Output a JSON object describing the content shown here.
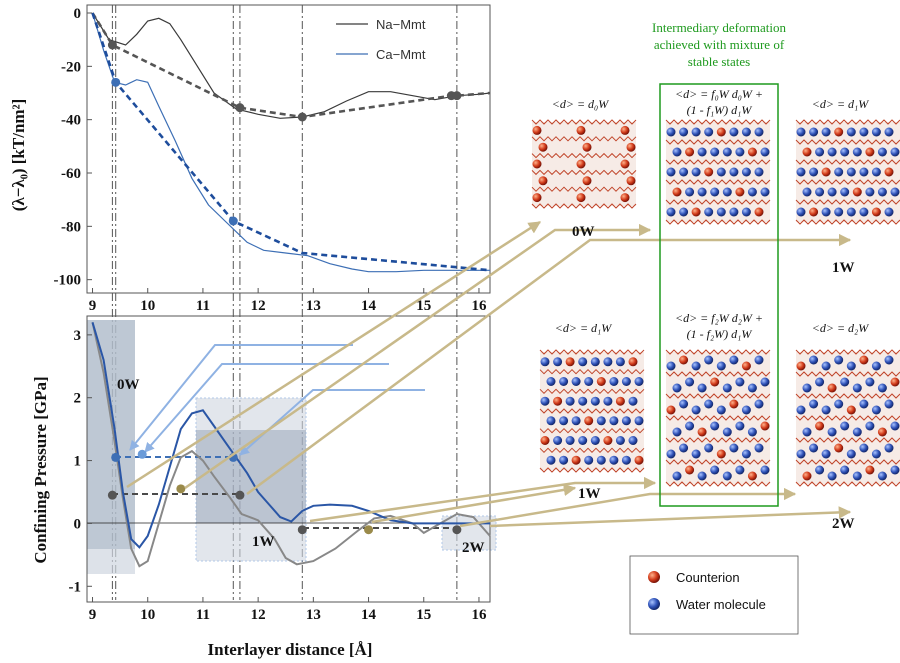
{
  "chart_data": [
    {
      "type": "line",
      "ylabel": "(λ−λ₀) [kT/nm²]",
      "xlim": [
        8.9,
        16.2
      ],
      "ylim": [
        -105,
        3
      ],
      "yticks": [
        0,
        -20,
        -40,
        -60,
        -80,
        -100
      ],
      "xticks": [
        9,
        10,
        11,
        12,
        13,
        14,
        15,
        16
      ],
      "legend_position": "top-right",
      "series": [
        {
          "name": "Na−Mmt",
          "color": "#3a3a3a",
          "x": [
            9.0,
            9.3,
            9.6,
            9.8,
            10.0,
            10.2,
            10.4,
            10.6,
            10.9,
            11.2,
            11.6,
            12.0,
            12.4,
            12.8,
            13.2,
            13.6,
            14.0,
            14.4,
            14.8,
            15.2,
            15.6,
            16.0,
            16.2
          ],
          "y": [
            0,
            -10,
            -12,
            -8,
            -3,
            -2,
            -4,
            -10,
            -20,
            -30,
            -36,
            -38,
            -39.5,
            -39,
            -37,
            -33,
            -29.5,
            -29.5,
            -31,
            -32.5,
            -31,
            -30.5,
            -30
          ]
        },
        {
          "name": "Ca−Mmt",
          "color": "#3d6fb5",
          "x": [
            9.0,
            9.2,
            9.4,
            9.6,
            9.8,
            10.0,
            10.2,
            10.5,
            10.8,
            11.1,
            11.4,
            11.6,
            11.8,
            12.1,
            12.5,
            12.9,
            13.3,
            13.7,
            14.0,
            14.5,
            15.0,
            15.5,
            16.0,
            16.2
          ],
          "y": [
            0,
            -14,
            -26,
            -27,
            -25,
            -26,
            -35,
            -48,
            -62,
            -72,
            -78,
            -82,
            -86,
            -89,
            -90,
            -91,
            -94,
            -96,
            -97,
            -97,
            -96.5,
            -96.5,
            -96.5,
            -96.5
          ]
        },
        {
          "name": "",
          "color": "#555555",
          "dashed": true,
          "x": [
            9.0,
            9.36,
            11.67,
            12.8,
            15.5,
            15.6,
            16.2
          ],
          "y": [
            0,
            -12,
            -35.5,
            -39,
            -31,
            -31,
            -30
          ]
        },
        {
          "name": "",
          "color": "#1e4d9c",
          "dashed": true,
          "x": [
            9.0,
            9.42,
            11.55,
            12.8,
            16.2
          ],
          "y": [
            0,
            -26,
            -78,
            -90,
            -96.5
          ]
        }
      ],
      "points": [
        {
          "x": 9.36,
          "y": -12,
          "color": "#555555"
        },
        {
          "x": 11.67,
          "y": -35.5,
          "color": "#555555"
        },
        {
          "x": 12.8,
          "y": -39,
          "color": "#555555"
        },
        {
          "x": 15.5,
          "y": -31,
          "color": "#555555"
        },
        {
          "x": 15.6,
          "y": -31,
          "color": "#555555"
        },
        {
          "x": 9.42,
          "y": -26,
          "color": "#3d6fb5"
        },
        {
          "x": 11.55,
          "y": -78,
          "color": "#3d6fb5"
        }
      ],
      "vlines": [
        9.36,
        9.42,
        11.55,
        11.67,
        12.8,
        15.6
      ]
    },
    {
      "type": "line",
      "xlabel": "Interlayer distance [Å]",
      "ylabel": "Confining Pressure [GPa]",
      "xlim": [
        8.9,
        16.2
      ],
      "ylim": [
        -1.25,
        3.3
      ],
      "yticks": [
        3,
        2,
        1,
        0,
        -1
      ],
      "xticks": [
        9,
        10,
        11,
        12,
        13,
        14,
        15,
        16
      ],
      "series": [
        {
          "name": "Na−Mmt",
          "color": "#888888",
          "x": [
            9.0,
            9.2,
            9.4,
            9.55,
            9.7,
            9.85,
            10.0,
            10.2,
            10.4,
            10.6,
            10.8,
            11.0,
            11.2,
            11.5,
            11.7,
            12.0,
            12.3,
            12.5,
            12.7,
            13.0,
            13.4,
            13.8,
            14.1,
            14.4,
            14.8,
            15.0,
            15.3,
            15.6,
            15.9,
            16.2
          ],
          "y": [
            3.2,
            2.4,
            1.3,
            0.4,
            -0.4,
            -0.68,
            -0.6,
            0.0,
            0.6,
            1.05,
            1.15,
            1.0,
            0.75,
            0.4,
            0.15,
            0.05,
            -0.25,
            -0.55,
            -0.65,
            -0.6,
            -0.4,
            -0.12,
            0.08,
            0.12,
            0.0,
            -0.15,
            0.0,
            0.15,
            0.1,
            -0.2
          ]
        },
        {
          "name": "Ca−Mmt",
          "color": "#2a56a6",
          "x": [
            9.0,
            9.2,
            9.4,
            9.55,
            9.7,
            9.85,
            10.0,
            10.2,
            10.4,
            10.6,
            10.8,
            11.0,
            11.2,
            11.4,
            11.6,
            11.8,
            12.0,
            12.2,
            12.4,
            12.6,
            12.8,
            13.0,
            13.3,
            13.7,
            14.0,
            14.4,
            14.8,
            15.2,
            15.6,
            16.0,
            16.2
          ],
          "y": [
            3.2,
            2.6,
            1.5,
            0.5,
            -0.25,
            -0.38,
            -0.2,
            0.3,
            0.9,
            1.5,
            1.75,
            1.8,
            1.55,
            1.3,
            1.05,
            0.8,
            0.5,
            0.3,
            0.1,
            0.03,
            0.2,
            0.28,
            0.3,
            0.28,
            0.2,
            0.05,
            0.0,
            0.0,
            0.0,
            0.0,
            0.0
          ]
        }
      ],
      "points": [
        {
          "x": 9.36,
          "y": 0.45,
          "color": "#555555"
        },
        {
          "x": 9.42,
          "y": 1.05,
          "color": "#3d6fb5"
        },
        {
          "x": 9.9,
          "y": 1.1,
          "color": "#6a9bd9"
        },
        {
          "x": 10.6,
          "y": 0.55,
          "color": "#9a8a4a"
        },
        {
          "x": 11.55,
          "y": 1.05,
          "color": "#3d6fb5"
        },
        {
          "x": 11.67,
          "y": 0.45,
          "color": "#555555"
        },
        {
          "x": 12.8,
          "y": -0.1,
          "color": "#555555"
        },
        {
          "x": 14.0,
          "y": -0.1,
          "color": "#9a8a4a"
        },
        {
          "x": 15.6,
          "y": -0.1,
          "color": "#555555"
        }
      ],
      "annotations": [
        "0W",
        "1W",
        "2W"
      ]
    }
  ],
  "panel": {
    "legend": {
      "na": "Na−Mmt",
      "ca": "Ca−Mmt"
    },
    "top_ylabel": "(λ−λ₀) [kT/nm²]",
    "bottom_ylabel": "Confining Pressure [GPa]",
    "xlabel": "Interlayer distance [Å]",
    "label_0w": "0W",
    "label_1w": "1W",
    "label_2w": "2W"
  },
  "snapshots": {
    "title_line1": "Intermediary deformation",
    "title_line2": "achieved with mixture of",
    "title_line3": "stable states",
    "cap_d0w": "<d> = d₀W",
    "cap_mix1a": "<d> = f₀W d₀W +",
    "cap_mix1b": "(1 - f₁W) d₁W",
    "cap_d1w_top": "<d> = d₁W",
    "cap_d1w_bot": "<d> = d₁W",
    "cap_mix2a": "<d> = f₂W d₂W +",
    "cap_mix2b": "(1 - f₂W) d₁W",
    "cap_d2w": "<d> = d₂W",
    "lab_0w": "0W",
    "lab_1w_top": "1W",
    "lab_1w_bot": "1W",
    "lab_2w": "2W"
  },
  "key": {
    "counterion": "Counterion",
    "water": "Water molecule"
  },
  "colors": {
    "na": "#3a3a3a",
    "ca": "#3d6fb5",
    "counterion": "#d13a1a",
    "water": "#2f52b8",
    "green": "#1e9a1e",
    "arrow": "#c8b98a"
  }
}
